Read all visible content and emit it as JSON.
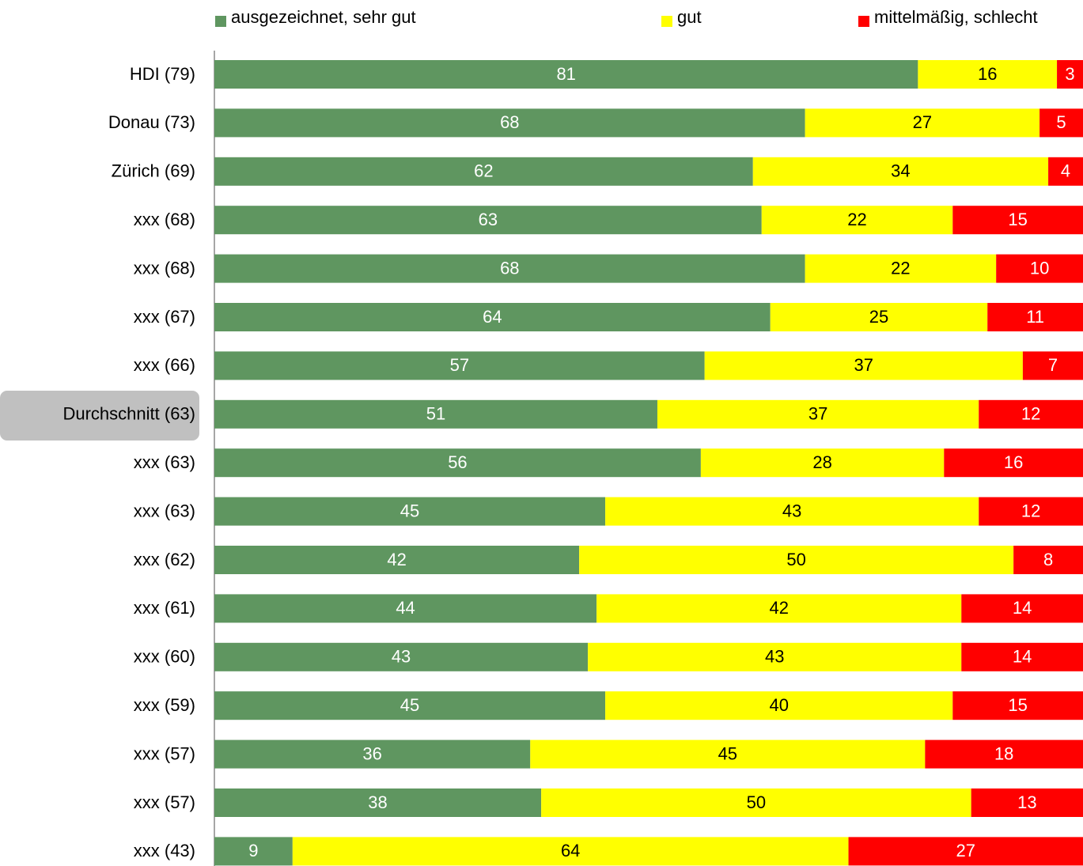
{
  "chart_data": {
    "type": "bar",
    "orientation": "horizontal",
    "stacked": "percent",
    "categories": [
      "HDI (79)",
      "Donau (73)",
      "Zürich (69)",
      "xxx (68)",
      "xxx (68)",
      "xxx (67)",
      "xxx (66)",
      "Durchschnitt (63)",
      "xxx (63)",
      "xxx (63)",
      "xxx (62)",
      "xxx (61)",
      "xxx (60)",
      "xxx (59)",
      "xxx (57)",
      "xxx (57)",
      "xxx (43)"
    ],
    "series": [
      {
        "name": "ausgezeichnet, sehr gut",
        "color": "#5f9660",
        "label_color": "#ffffff",
        "values": [
          81,
          68,
          62,
          63,
          68,
          64,
          57,
          51,
          56,
          45,
          42,
          44,
          43,
          45,
          36,
          38,
          9
        ]
      },
      {
        "name": "gut",
        "color": "#ffff00",
        "label_color": "#000000",
        "values": [
          16,
          27,
          34,
          22,
          22,
          25,
          37,
          37,
          28,
          43,
          50,
          42,
          43,
          40,
          45,
          50,
          64
        ]
      },
      {
        "name": "mittelmäßig, schlecht",
        "color": "#ff0000",
        "label_color": "#ffffff",
        "values": [
          3,
          5,
          4,
          15,
          10,
          11,
          7,
          12,
          16,
          12,
          8,
          14,
          14,
          15,
          18,
          13,
          27
        ]
      }
    ],
    "legend": "top"
  }
}
